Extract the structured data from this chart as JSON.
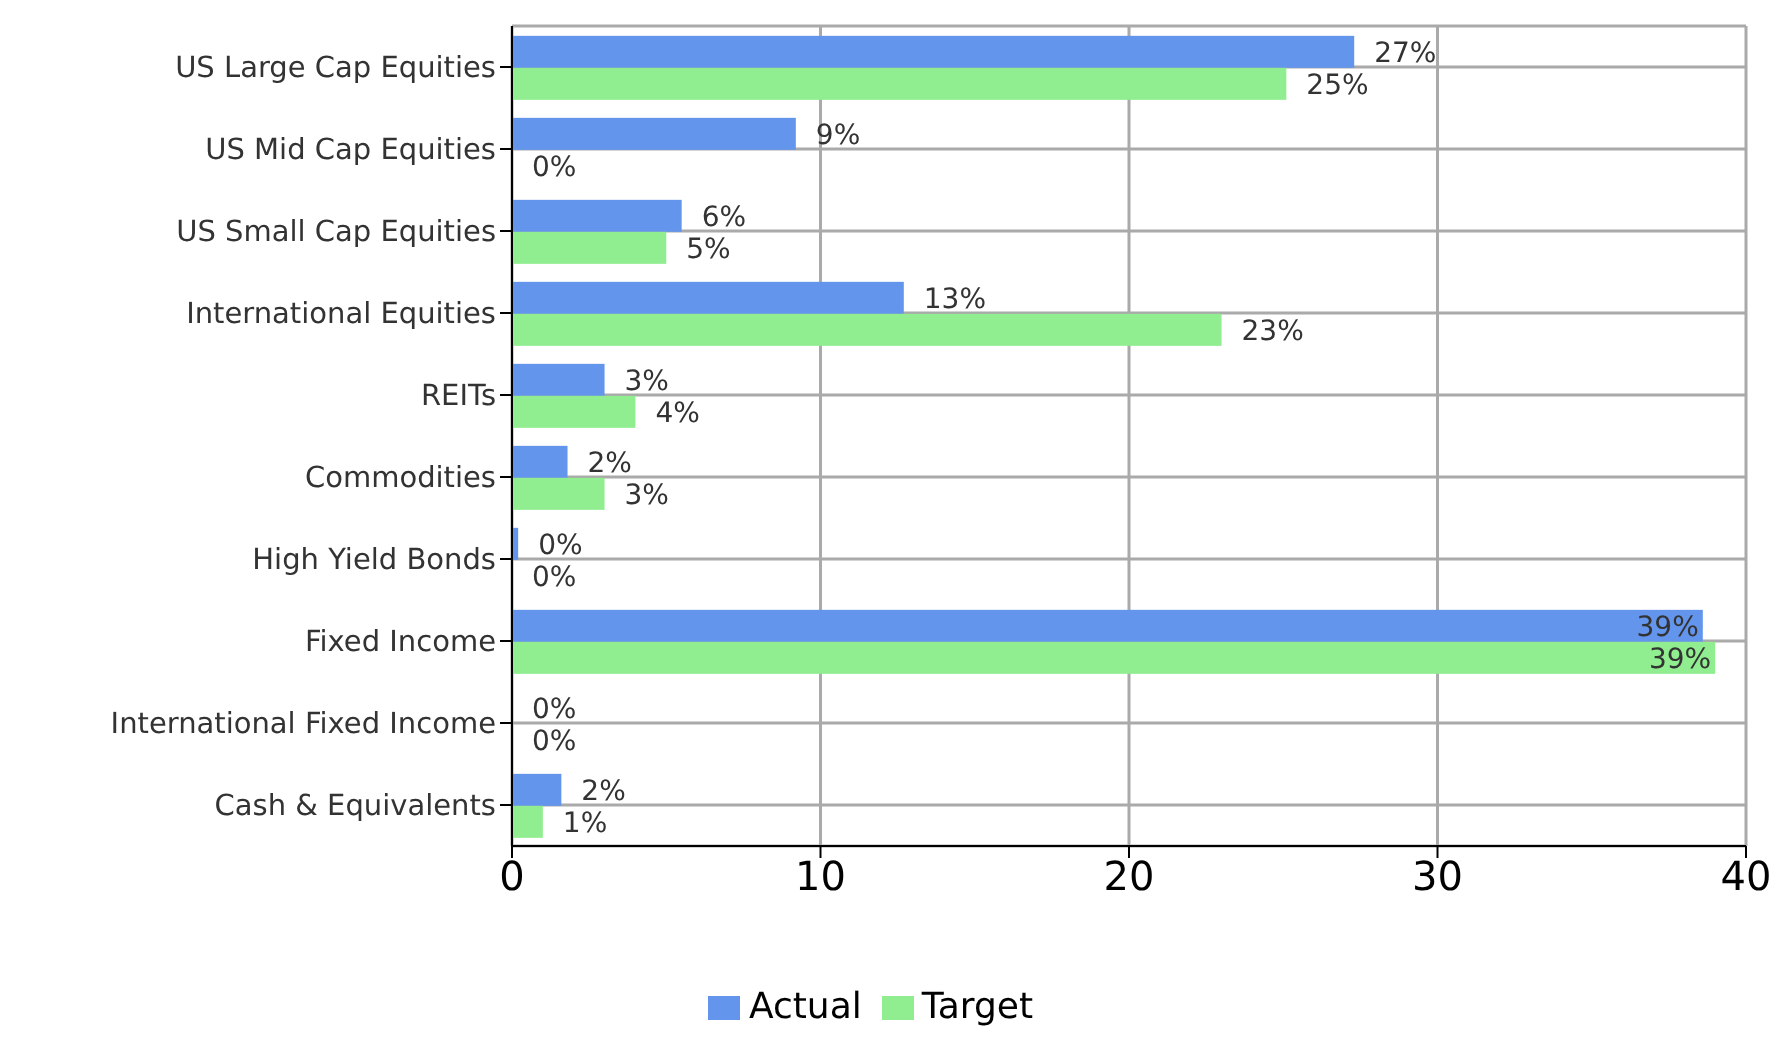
{
  "chart_data": {
    "type": "bar",
    "orientation": "horizontal",
    "categories": [
      "US Large Cap Equities",
      "US Mid Cap Equities",
      "US Small Cap Equities",
      "International Equities",
      "REITs",
      "Commodities",
      "High Yield Bonds",
      "Fixed Income",
      "International Fixed Income",
      "Cash & Equivalents"
    ],
    "series": [
      {
        "name": "Actual",
        "color": "#6495ed",
        "values": [
          27.3,
          9.2,
          5.5,
          12.7,
          3.0,
          1.8,
          0.2,
          38.6,
          0,
          1.6
        ],
        "value_labels": [
          "27%",
          "9%",
          "6%",
          "13%",
          "3%",
          "2%",
          "0%",
          "39%",
          "0%",
          "2%"
        ]
      },
      {
        "name": "Target",
        "color": "#90ee90",
        "values": [
          25.1,
          0,
          5.0,
          23.0,
          4.0,
          3.0,
          0,
          39.0,
          0,
          1.0
        ],
        "value_labels": [
          "25%",
          "0%",
          "5%",
          "23%",
          "4%",
          "3%",
          "0%",
          "39%",
          "0%",
          "1%"
        ]
      }
    ],
    "xlim": [
      0,
      40
    ],
    "xticks": [
      0,
      10,
      20,
      30,
      40
    ],
    "grid": true,
    "legend": "bottom"
  }
}
